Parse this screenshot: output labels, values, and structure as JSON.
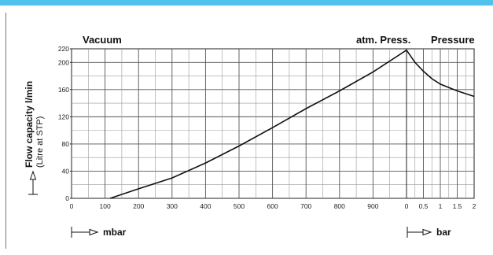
{
  "chart_data": {
    "type": "line",
    "y_axis_label": "Flow capacity l/min",
    "y_axis_sublabel": "(Litre at STP)",
    "y_ticks": [
      0,
      40,
      80,
      120,
      160,
      200,
      220
    ],
    "ylim": [
      0,
      220
    ],
    "grid": true,
    "vacuum": {
      "label": "Vacuum",
      "unit": "mbar",
      "x_ticks": [
        "0",
        "100",
        "200",
        "300",
        "400",
        "500",
        "600",
        "700",
        "800",
        "900"
      ],
      "xlim": [
        0,
        1000
      ],
      "points": [
        [
          115,
          0
        ],
        [
          200,
          14
        ],
        [
          300,
          30
        ],
        [
          400,
          52
        ],
        [
          500,
          77
        ],
        [
          600,
          104
        ],
        [
          700,
          132
        ],
        [
          800,
          158
        ],
        [
          900,
          186
        ],
        [
          1000,
          218
        ]
      ]
    },
    "pressure": {
      "label": "Pressure",
      "start_label": "atm. Press.",
      "unit": "bar",
      "x_ticks": [
        "0",
        "0.5",
        "1",
        "1.5",
        "2"
      ],
      "xlim": [
        0,
        2
      ],
      "points": [
        [
          0,
          218
        ],
        [
          0.25,
          200
        ],
        [
          0.5,
          187
        ],
        [
          0.75,
          176
        ],
        [
          1.0,
          168
        ],
        [
          1.5,
          158
        ],
        [
          2.0,
          150
        ]
      ]
    }
  }
}
